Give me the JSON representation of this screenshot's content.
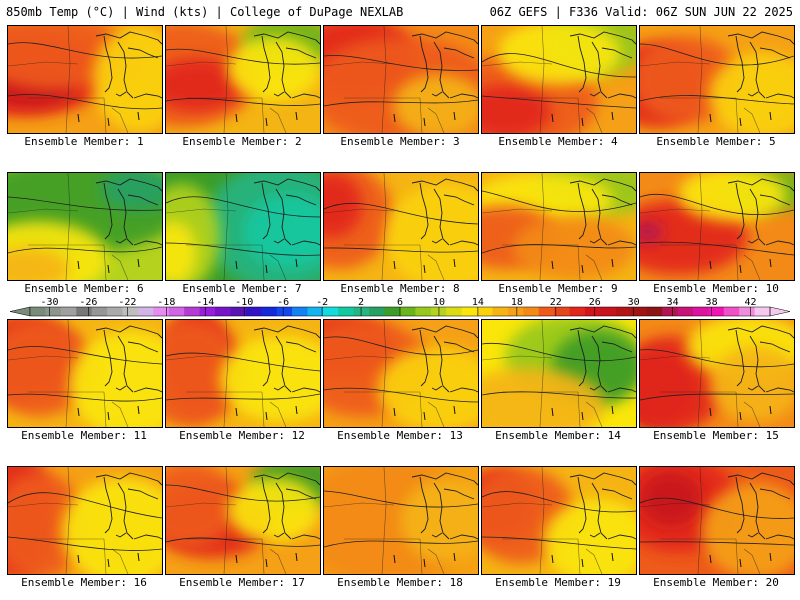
{
  "header": {
    "left": "850mb Temp (°C) | Wind (kts) | College of DuPage NEXLAB",
    "right": "06Z GEFS | F336 Valid: 06Z SUN JUN 22 2025"
  },
  "panels": [
    {
      "label": "Ensemble Member: 1",
      "base": "#f5a016",
      "blobs": [
        [
          "#e2261c",
          0.1,
          0.45,
          0.55,
          0.4
        ],
        [
          "#c8141c",
          0.15,
          0.55,
          0.3,
          0.2
        ],
        [
          "#ee5a1a",
          0.3,
          0.25,
          0.5,
          0.35
        ],
        [
          "#fad20a",
          0.85,
          0.5,
          0.3,
          0.5
        ]
      ]
    },
    {
      "label": "Ensemble Member: 2",
      "base": "#f4b414",
      "blobs": [
        [
          "#ee5a1a",
          0.1,
          0.45,
          0.5,
          0.5
        ],
        [
          "#e2261c",
          0.2,
          0.55,
          0.3,
          0.25
        ],
        [
          "#6ab41e",
          0.8,
          0.15,
          0.3,
          0.25
        ],
        [
          "#fae60a",
          0.7,
          0.4,
          0.3,
          0.3
        ]
      ]
    },
    {
      "label": "Ensemble Member: 3",
      "base": "#f38a18",
      "blobs": [
        [
          "#e2261c",
          0.2,
          0.3,
          0.4,
          0.4
        ],
        [
          "#ee5a1a",
          0.5,
          0.6,
          0.6,
          0.5
        ],
        [
          "#f5b414",
          0.75,
          0.75,
          0.3,
          0.3
        ]
      ]
    },
    {
      "label": "Ensemble Member: 4",
      "base": "#f5a016",
      "blobs": [
        [
          "#ee5a1a",
          0.25,
          0.7,
          0.5,
          0.45
        ],
        [
          "#e2261c",
          0.15,
          0.8,
          0.3,
          0.25
        ],
        [
          "#96c81e",
          0.75,
          0.15,
          0.35,
          0.3
        ],
        [
          "#fae60a",
          0.5,
          0.25,
          0.4,
          0.3
        ]
      ]
    },
    {
      "label": "Ensemble Member: 5",
      "base": "#f5a016",
      "blobs": [
        [
          "#e2261c",
          0.1,
          0.55,
          0.35,
          0.4
        ],
        [
          "#ee5a1a",
          0.3,
          0.5,
          0.35,
          0.4
        ],
        [
          "#fad20a",
          0.8,
          0.65,
          0.35,
          0.4
        ]
      ]
    },
    {
      "label": "Ensemble Member: 6",
      "base": "#b4d21e",
      "blobs": [
        [
          "#3c9c28",
          0.45,
          0.3,
          0.7,
          0.45
        ],
        [
          "#28a064",
          0.85,
          0.15,
          0.25,
          0.2
        ],
        [
          "#fae60a",
          0.2,
          0.8,
          0.45,
          0.35
        ],
        [
          "#f5b414",
          0.1,
          0.9,
          0.3,
          0.2
        ]
      ]
    },
    {
      "label": "Ensemble Member: 7",
      "base": "#3c9c28",
      "blobs": [
        [
          "#28b482",
          0.75,
          0.5,
          0.5,
          0.6
        ],
        [
          "#14c8a0",
          0.8,
          0.55,
          0.3,
          0.35
        ],
        [
          "#b4d21e",
          0.1,
          0.6,
          0.25,
          0.5
        ],
        [
          "#fae60a",
          0.05,
          0.75,
          0.15,
          0.3
        ]
      ]
    },
    {
      "label": "Ensemble Member: 8",
      "base": "#f5b414",
      "blobs": [
        [
          "#ee5a1a",
          0.1,
          0.4,
          0.35,
          0.5
        ],
        [
          "#e2261c",
          0.05,
          0.3,
          0.2,
          0.3
        ],
        [
          "#fad20a",
          0.8,
          0.6,
          0.4,
          0.5
        ]
      ]
    },
    {
      "label": "Ensemble Member: 9",
      "base": "#f5b414",
      "blobs": [
        [
          "#96c81e",
          0.75,
          0.15,
          0.4,
          0.25
        ],
        [
          "#fae60a",
          0.4,
          0.25,
          0.45,
          0.25
        ],
        [
          "#ee5a1a",
          0.15,
          0.6,
          0.35,
          0.3
        ],
        [
          "#f38a18",
          0.6,
          0.7,
          0.4,
          0.3
        ]
      ]
    },
    {
      "label": "Ensemble Member: 10",
      "base": "#f38a18",
      "blobs": [
        [
          "#e2261c",
          0.25,
          0.6,
          0.45,
          0.35
        ],
        [
          "#b41450",
          0.05,
          0.55,
          0.1,
          0.1
        ],
        [
          "#6ab41e",
          0.85,
          0.15,
          0.3,
          0.2
        ],
        [
          "#fae60a",
          0.6,
          0.2,
          0.35,
          0.25
        ]
      ]
    },
    {
      "label": "Ensemble Member: 11",
      "base": "#f5b414",
      "blobs": [
        [
          "#e2261c",
          0.1,
          0.35,
          0.35,
          0.4
        ],
        [
          "#ee5a1a",
          0.2,
          0.45,
          0.35,
          0.45
        ],
        [
          "#fae60a",
          0.8,
          0.6,
          0.4,
          0.5
        ]
      ]
    },
    {
      "label": "Ensemble Member: 12",
      "base": "#f5b414",
      "blobs": [
        [
          "#e2261c",
          0.2,
          0.4,
          0.25,
          0.5
        ],
        [
          "#ee5a1a",
          0.15,
          0.5,
          0.35,
          0.5
        ],
        [
          "#fae60a",
          0.75,
          0.55,
          0.4,
          0.4
        ]
      ]
    },
    {
      "label": "Ensemble Member: 13",
      "base": "#f5a016",
      "blobs": [
        [
          "#e2261c",
          0.1,
          0.25,
          0.35,
          0.3
        ],
        [
          "#ee5a1a",
          0.25,
          0.45,
          0.45,
          0.45
        ],
        [
          "#fad20a",
          0.75,
          0.65,
          0.4,
          0.4
        ]
      ]
    },
    {
      "label": "Ensemble Member: 14",
      "base": "#fae60a",
      "blobs": [
        [
          "#96c81e",
          0.6,
          0.35,
          0.45,
          0.4
        ],
        [
          "#3c9c28",
          0.75,
          0.45,
          0.3,
          0.35
        ],
        [
          "#f5b414",
          0.3,
          0.8,
          0.5,
          0.35
        ]
      ]
    },
    {
      "label": "Ensemble Member: 15",
      "base": "#f38a18",
      "blobs": [
        [
          "#c8141c",
          0.1,
          0.65,
          0.25,
          0.35
        ],
        [
          "#e2261c",
          0.2,
          0.6,
          0.35,
          0.45
        ],
        [
          "#fae60a",
          0.7,
          0.25,
          0.4,
          0.3
        ],
        [
          "#f5b414",
          0.75,
          0.6,
          0.3,
          0.35
        ]
      ]
    },
    {
      "label": "Ensemble Member: 16",
      "base": "#f5a016",
      "blobs": [
        [
          "#e2261c",
          0.05,
          0.45,
          0.25,
          0.6
        ],
        [
          "#ee5a1a",
          0.2,
          0.55,
          0.3,
          0.5
        ],
        [
          "#fae60a",
          0.75,
          0.6,
          0.4,
          0.5
        ]
      ]
    },
    {
      "label": "Ensemble Member: 17",
      "base": "#f5a016",
      "blobs": [
        [
          "#e2261c",
          0.3,
          0.5,
          0.4,
          0.35
        ],
        [
          "#ee5a1a",
          0.15,
          0.35,
          0.3,
          0.4
        ],
        [
          "#3c9c28",
          0.85,
          0.15,
          0.3,
          0.25
        ],
        [
          "#fae60a",
          0.7,
          0.4,
          0.3,
          0.3
        ]
      ]
    },
    {
      "label": "Ensemble Member: 18",
      "base": "#f5a016",
      "blobs": [
        [
          "#f38a18",
          0.4,
          0.5,
          0.6,
          0.6
        ],
        [
          "#f5b414",
          0.8,
          0.5,
          0.3,
          0.4
        ]
      ]
    },
    {
      "label": "Ensemble Member: 19",
      "base": "#f5b414",
      "blobs": [
        [
          "#e2261c",
          0.1,
          0.35,
          0.25,
          0.35
        ],
        [
          "#ee5a1a",
          0.25,
          0.45,
          0.35,
          0.45
        ],
        [
          "#fae60a",
          0.75,
          0.7,
          0.35,
          0.4
        ]
      ]
    },
    {
      "label": "Ensemble Member: 20",
      "base": "#ee5a1a",
      "blobs": [
        [
          "#e2261c",
          0.25,
          0.35,
          0.4,
          0.45
        ],
        [
          "#c8141c",
          0.2,
          0.3,
          0.2,
          0.25
        ],
        [
          "#f5a016",
          0.75,
          0.6,
          0.35,
          0.45
        ]
      ]
    }
  ],
  "colorbar": {
    "ticks": [
      "-30",
      "-26",
      "-22",
      "-18",
      "-14",
      "-10",
      "-6",
      "-2",
      "2",
      "6",
      "10",
      "14",
      "18",
      "22",
      "26",
      "30",
      "34",
      "38",
      "42"
    ],
    "colors": [
      "#788c78",
      "#8c968c",
      "#a0a0a0",
      "#787878",
      "#969696",
      "#aaaaaa",
      "#bebebe",
      "#d2b4e6",
      "#e68cf0",
      "#d264e6",
      "#b43cd2",
      "#961edc",
      "#7814c8",
      "#5a14b4",
      "#3214c8",
      "#1428dc",
      "#1446f0",
      "#1482f0",
      "#14b4f0",
      "#14dcdc",
      "#14c8a0",
      "#28b482",
      "#28a064",
      "#3c9c28",
      "#6ab41e",
      "#96c81e",
      "#b4d21e",
      "#dcdc14",
      "#fae60a",
      "#fad20a",
      "#f5b414",
      "#f5a016",
      "#f38a18",
      "#ee5a1a",
      "#e6461c",
      "#e2261c",
      "#d2141c",
      "#c8141c",
      "#b41414",
      "#a01414",
      "#8c1414",
      "#b41450",
      "#c81478",
      "#dc14a0",
      "#f014b4",
      "#f050c8",
      "#f08cdc",
      "#f5c8f0"
    ]
  }
}
